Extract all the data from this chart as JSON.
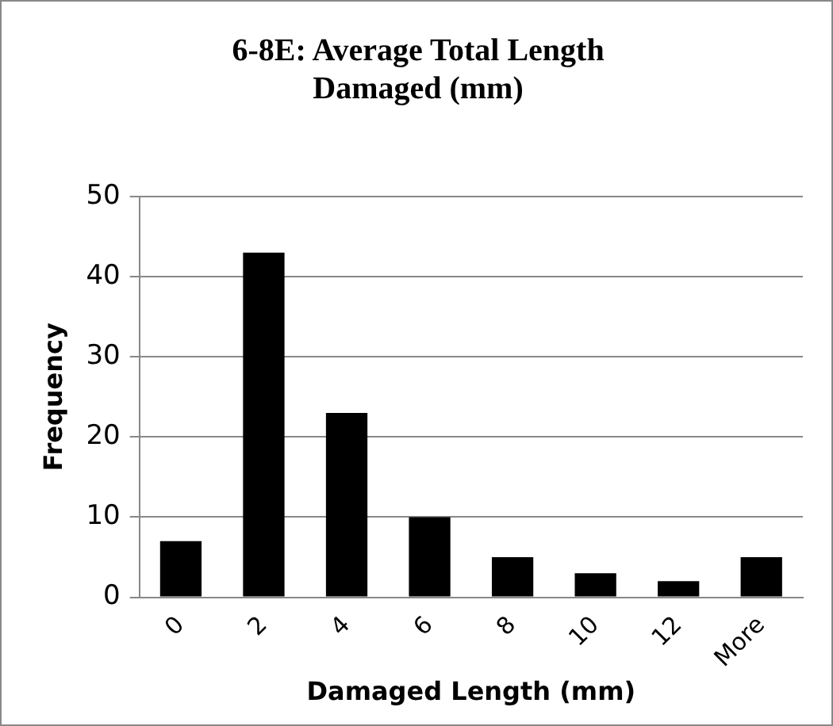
{
  "chart_data": {
    "type": "bar",
    "title": "6-8E: Average Total Length Damaged (mm)",
    "xlabel": "Damaged Length (mm)",
    "ylabel": "Frequency",
    "categories": [
      "0",
      "2",
      "4",
      "6",
      "8",
      "10",
      "12",
      "More"
    ],
    "series": [
      {
        "color": "#000000",
        "values": [
          7,
          43,
          23,
          10,
          5,
          3,
          2,
          5
        ]
      }
    ],
    "ylim": [
      0,
      50
    ],
    "yticks": [
      0,
      10,
      20,
      30,
      40,
      50
    ],
    "grid": "y",
    "legend": false
  }
}
